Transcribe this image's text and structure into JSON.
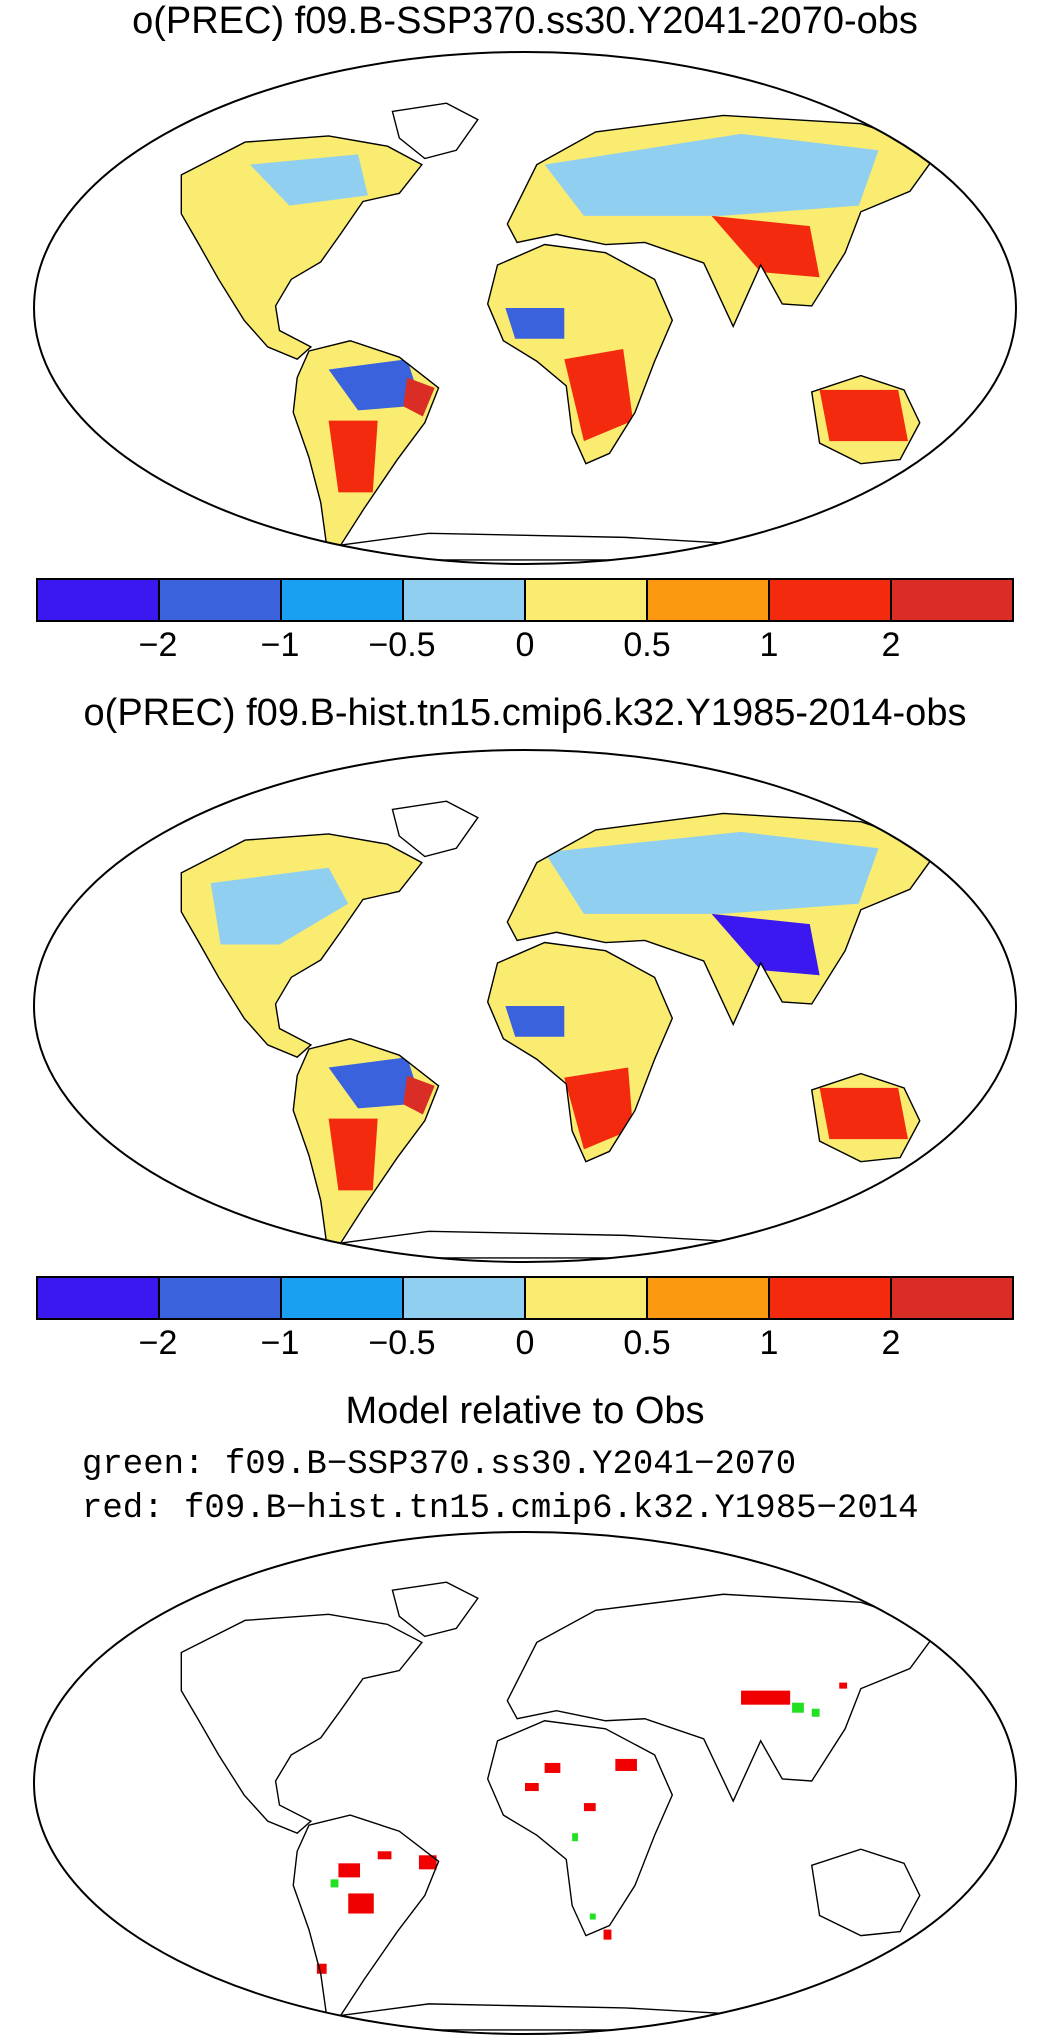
{
  "panels": [
    {
      "title": "o(PREC) f09.B-SSP370.ss30.Y2041-2070-obs"
    },
    {
      "title": "o(PREC) f09.B-hist.tn15.cmip6.k32.Y1985-2014-obs"
    }
  ],
  "colorbar": {
    "colors": [
      "#3b18f0",
      "#3a62dc",
      "#1aa0f0",
      "#90cff0",
      "#f9ec70",
      "#fb9a10",
      "#f42a0e",
      "#d92d26"
    ],
    "labels": [
      "−2",
      "−1",
      "−0.5",
      "0",
      "0.5",
      "1",
      "2"
    ]
  },
  "bottom": {
    "title": "Model relative to Obs",
    "green_label": "green: f09.B−SSP370.ss30.Y2041−2070",
    "red_label": "red: f09.B−hist.tn15.cmip6.k32.Y1985−2014",
    "colors": {
      "green": "#22e022",
      "red": "#f00000"
    }
  }
}
